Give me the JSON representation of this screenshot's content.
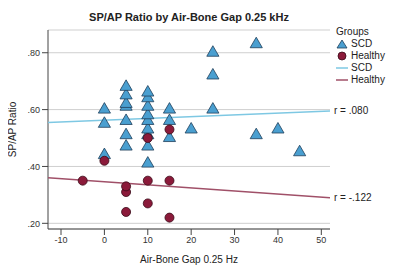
{
  "chart_data": {
    "type": "scatter",
    "title": "SP/AP Ratio by Air-Bone Gap 0.25 kHz",
    "x_label": "Air-Bone Gap 0.25 Hz",
    "y_label": "SP/AP Ratio",
    "legend_title": "Groups",
    "xlim": [
      -13,
      52
    ],
    "xticks": [
      -10,
      0,
      10,
      20,
      30,
      40,
      50
    ],
    "ylim": [
      0.18,
      0.88
    ],
    "yticks": [
      {
        "value": 0.2,
        "label": ".20"
      },
      {
        "value": 0.4,
        "label": ".40"
      },
      {
        "value": 0.6,
        "label": ".60"
      },
      {
        "value": 0.8,
        "label": ".80"
      }
    ],
    "grid": true,
    "legend": "upper right",
    "series": [
      {
        "name": "SCD",
        "color": "#4a9fd0",
        "marker": "triangle",
        "x": [
          0,
          0,
          0,
          5,
          5,
          5,
          5,
          5,
          5,
          5,
          10,
          10,
          10,
          10,
          10,
          10,
          10,
          10,
          10,
          15,
          15,
          15,
          20,
          25,
          25,
          25,
          35,
          35,
          40,
          45
        ],
        "values": [
          0.44,
          0.55,
          0.6,
          0.47,
          0.51,
          0.56,
          0.61,
          0.62,
          0.65,
          0.68,
          0.41,
          0.47,
          0.51,
          0.53,
          0.56,
          0.58,
          0.61,
          0.64,
          0.66,
          0.5,
          0.56,
          0.6,
          0.53,
          0.6,
          0.72,
          0.8,
          0.51,
          0.83,
          0.53,
          0.45
        ]
      },
      {
        "name": "Healthy",
        "color": "#8b1a3a",
        "marker": "circle",
        "x": [
          -5,
          0,
          5,
          5,
          5,
          10,
          10,
          10,
          15,
          15,
          15
        ],
        "values": [
          0.35,
          0.42,
          0.24,
          0.31,
          0.33,
          0.5,
          0.27,
          0.35,
          0.53,
          0.35,
          0.22
        ]
      }
    ],
    "fit_lines": [
      {
        "name": "SCD",
        "color": "#7ec8e3",
        "line_style": "solid",
        "x": [
          -13,
          52
        ],
        "values": [
          0.555,
          0.595
        ],
        "label": "r = .080"
      },
      {
        "name": "Healthy",
        "color": "#a05068",
        "line_style": "solid",
        "x": [
          -13,
          52
        ],
        "values": [
          0.36,
          0.29
        ],
        "label": "r = -.122"
      }
    ]
  }
}
